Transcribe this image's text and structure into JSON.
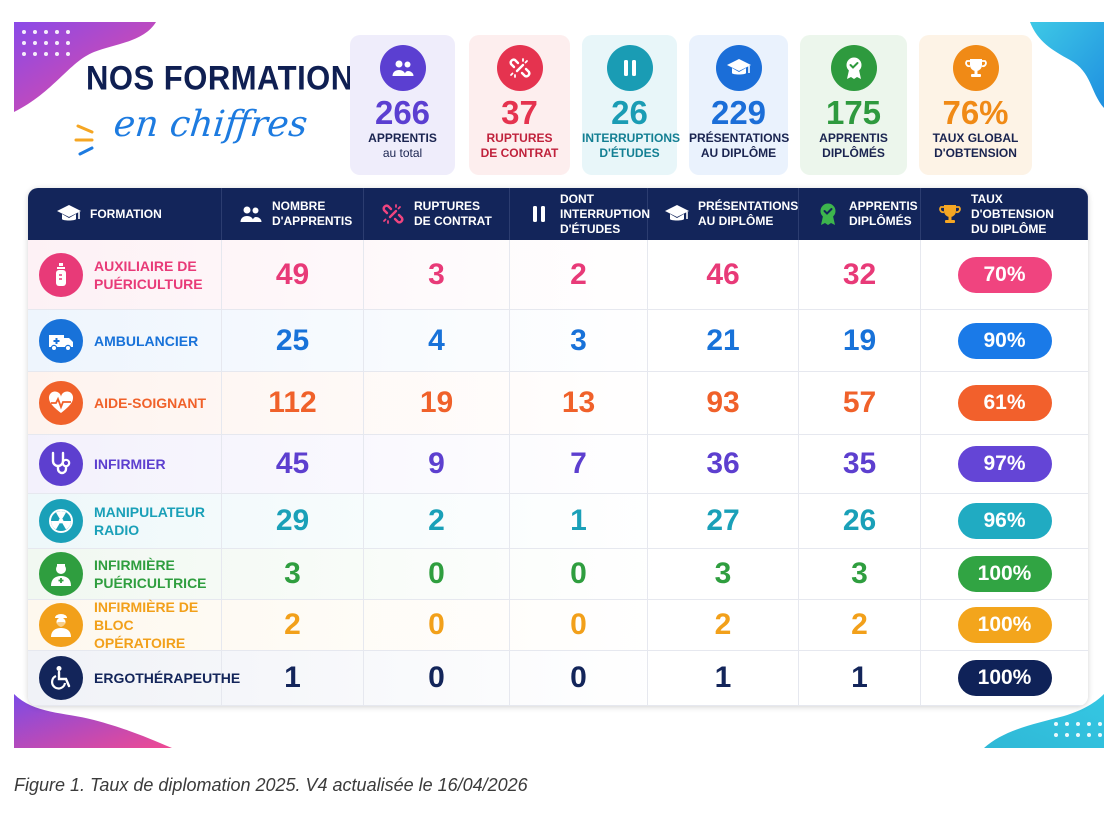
{
  "title_line1": "NOS FORMATIONS",
  "title_line2": "en chiffres",
  "kpis": [
    {
      "value": "266",
      "label1": "APPRENTIS",
      "label2": "au total",
      "color": "#5b3fd1",
      "bg": "#efedfb",
      "icon": "users-icon"
    },
    {
      "value": "37",
      "label1": "RUPTURES",
      "label2": "DE CONTRAT",
      "color": "#e5334f",
      "bg": "#fdeeee",
      "icon": "broken-link-icon"
    },
    {
      "value": "26",
      "label1": "INTERRUPTIONS",
      "label2": "D'ÉTUDES",
      "color": "#1a9cb4",
      "bg": "#e8f6f9",
      "icon": "pause-icon"
    },
    {
      "value": "229",
      "label1": "PRÉSENTATIONS",
      "label2": "AU DIPLÔME",
      "color": "#1b6ed8",
      "bg": "#eaf2fd",
      "icon": "graduation-cap-icon"
    },
    {
      "value": "175",
      "label1": "APPRENTIS",
      "label2": "DIPLÔMÉS",
      "color": "#2e9a3e",
      "bg": "#ecf6ec",
      "icon": "award-badge-icon"
    },
    {
      "value": "76%",
      "label1": "TAUX GLOBAL",
      "label2": "D'OBTENSION",
      "color": "#f08a16",
      "bg": "#fdf3e6",
      "icon": "trophy-icon"
    }
  ],
  "headers": [
    {
      "line1": "FORMATION",
      "line2": "",
      "line3": "",
      "icon": "graduation-cap-icon"
    },
    {
      "line1": "NOMBRE",
      "line2": "D'APPRENTIS",
      "line3": "",
      "icon": "users-icon"
    },
    {
      "line1": "RUPTURES",
      "line2": "DE CONTRAT",
      "line3": "",
      "icon": "broken-link-icon"
    },
    {
      "line1": "DONT",
      "line2": "INTERRUPTION",
      "line3": "D'ÉTUDES",
      "icon": "pause-icon"
    },
    {
      "line1": "PRÉSENTATIONS",
      "line2": "AU DIPLÔME",
      "line3": "",
      "icon": "graduation-cap-icon"
    },
    {
      "line1": "APPRENTIS",
      "line2": "DIPLÔMÉS",
      "line3": "",
      "icon": "award-badge-icon"
    },
    {
      "line1": "TAUX D'OBTENSION",
      "line2": "DU DIPLÔME",
      "line3": "",
      "icon": "trophy-icon"
    }
  ],
  "chart_data": {
    "type": "table",
    "columns": [
      "FORMATION",
      "NOMBRE D'APPRENTIS",
      "RUPTURES DE CONTRAT",
      "DONT INTERRUPTION D'ÉTUDES",
      "PRÉSENTATIONS AU DIPLÔME",
      "APPRENTIS DIPLÔMÉS",
      "TAUX D'OBTENSION DU DIPLÔME"
    ],
    "rows": [
      {
        "formation": "AUXILIAIRE DE PUÉRICULTURE",
        "apprentis": 49,
        "ruptures": 3,
        "interruptions": 2,
        "presentations": 46,
        "diplomes": 32,
        "taux": "70%",
        "color": "#e83a78",
        "pill": "#f0447f",
        "bg": "#fdf1f5",
        "icon": "baby-bottle-icon"
      },
      {
        "formation": "AMBULANCIER",
        "apprentis": 25,
        "ruptures": 4,
        "interruptions": 3,
        "presentations": 21,
        "diplomes": 19,
        "taux": "90%",
        "color": "#1872d9",
        "pill": "#1a7ae8",
        "bg": "#eef5fd",
        "icon": "ambulance-icon"
      },
      {
        "formation": "AIDE-SOIGNANT",
        "apprentis": 112,
        "ruptures": 19,
        "interruptions": 13,
        "presentations": 93,
        "diplomes": 57,
        "taux": "61%",
        "color": "#f0612a",
        "pill": "#f2602c",
        "bg": "#fef3ee",
        "icon": "heartbeat-icon"
      },
      {
        "formation": "INFIRMIER",
        "apprentis": 45,
        "ruptures": 9,
        "interruptions": 7,
        "presentations": 36,
        "diplomes": 35,
        "taux": "97%",
        "color": "#5d3fcf",
        "pill": "#6445d6",
        "bg": "#f3f1fc",
        "icon": "stethoscope-icon"
      },
      {
        "formation": "MANIPULATEUR RADIO",
        "apprentis": 29,
        "ruptures": 2,
        "interruptions": 1,
        "presentations": 27,
        "diplomes": 26,
        "taux": "96%",
        "color": "#1aa0b8",
        "pill": "#20abc2",
        "bg": "#eef8fa",
        "icon": "radiation-icon"
      },
      {
        "formation": "INFIRMIÈRE PUÉRICULTRICE",
        "apprentis": 3,
        "ruptures": 0,
        "interruptions": 0,
        "presentations": 3,
        "diplomes": 3,
        "taux": "100%",
        "color": "#2f9e3f",
        "pill": "#31a443",
        "bg": "#f1f8f1",
        "icon": "nurse-icon"
      },
      {
        "formation": "INFIRMIÈRE DE BLOC OPÉRATOIRE",
        "apprentis": 2,
        "ruptures": 0,
        "interruptions": 0,
        "presentations": 2,
        "diplomes": 2,
        "taux": "100%",
        "color": "#f2a01a",
        "pill": "#f3a51c",
        "bg": "#fef8ee",
        "icon": "surgeon-icon"
      },
      {
        "formation": "ERGOTHÉRAPEUTHE",
        "apprentis": 1,
        "ruptures": 0,
        "interruptions": 0,
        "presentations": 1,
        "diplomes": 1,
        "taux": "100%",
        "color": "#13255a",
        "pill": "#0f2258",
        "bg": "#f0f2f7",
        "icon": "wheelchair-icon"
      }
    ]
  },
  "caption": "Figure 1. Taux de diplomation 2025. V4 actualisée le 16/04/2026"
}
